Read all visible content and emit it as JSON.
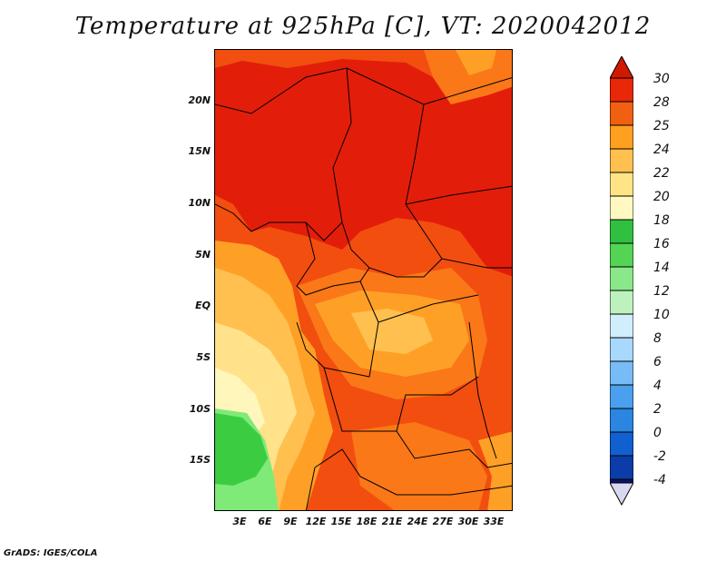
{
  "title": "Temperature at 925hPa [C], VT: 2020042012",
  "footer": "GrADS: IGES/COLA",
  "map": {
    "lat_labels": [
      "20N",
      "15N",
      "10N",
      "5N",
      "EQ",
      "5S",
      "10S",
      "15S"
    ],
    "lon_labels": [
      "3E",
      "6E",
      "9E",
      "12E",
      "15E",
      "18E",
      "21E",
      "24E",
      "27E",
      "30E",
      "33E"
    ],
    "lon_range": [
      0,
      35
    ],
    "lat_range": [
      -20,
      24.5
    ]
  },
  "colorbar": {
    "labels": [
      "30",
      "28",
      "25",
      "24",
      "22",
      "20",
      "18",
      "16",
      "14",
      "12",
      "10",
      "8",
      "6",
      "4",
      "2",
      "0",
      "-2",
      "-4"
    ],
    "colors": [
      "#d8d8f0",
      "#0a1268",
      "#0b3ca8",
      "#1060d0",
      "#2a86e0",
      "#4aa0ec",
      "#78bcf6",
      "#a8d8fc",
      "#d0eefc",
      "#bdf2bd",
      "#8ae88a",
      "#54d454",
      "#30bf40",
      "#fff8c0",
      "#ffe486",
      "#ffc050",
      "#ffa020",
      "#f06010",
      "#e82808",
      "#c81400"
    ]
  },
  "colors": {
    "c30": "#e21e0a",
    "c28": "#f24e10",
    "c25": "#fa7818",
    "c24": "#ffa026",
    "c22": "#ffc050",
    "c20": "#ffe28a",
    "c18": "#fff6bc",
    "c16": "#3ccc42",
    "c14": "#80ea78"
  }
}
